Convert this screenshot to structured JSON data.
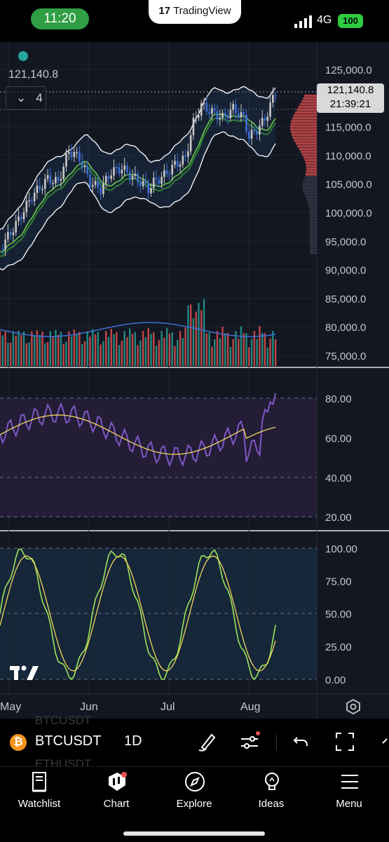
{
  "status_bar": {
    "time": "11:20",
    "app_pill": "TradingView",
    "network": "4G",
    "battery": "100"
  },
  "chart": {
    "last_price": "121,140.8",
    "countdown": "21:39:21",
    "overlay_price": "121,140.8",
    "collapsed_count": "4",
    "price_axis": [
      "125,000.0",
      "120,000.0",
      "115,000.0",
      "110,000.0",
      "105,000.0",
      "100,000.0",
      "95,000.0",
      "90,000.0",
      "85,000.0",
      "80,000.0",
      "75,000.0"
    ],
    "rsi_axis": [
      "80.00",
      "60.00",
      "40.00",
      "20.00"
    ],
    "stoch_axis": [
      "100.00",
      "75.00",
      "50.00",
      "25.00",
      "0.00"
    ],
    "months": [
      "May",
      "Jun",
      "Jul",
      "Aug"
    ],
    "colors": {
      "up": "#26a69a",
      "down": "#ef5350",
      "rsi": "#7e57c2",
      "signal": "#f0d75a",
      "stoch": "#9ce35a"
    }
  },
  "toolbar": {
    "symbol": "BTCUSDT",
    "interval": "1D",
    "ghost_symbol_above": "BTCUSDT",
    "ghost_symbol_below": "ETHUSDT",
    "icons": [
      "brush-icon",
      "indicators-icon",
      "undo-icon",
      "fullscreen-icon"
    ]
  },
  "nav": {
    "items": [
      {
        "label": "Watchlist",
        "icon": "watchlist-icon"
      },
      {
        "label": "Chart",
        "icon": "chart-icon"
      },
      {
        "label": "Explore",
        "icon": "compass-icon"
      },
      {
        "label": "Ideas",
        "icon": "lightbulb-icon"
      },
      {
        "label": "Menu",
        "icon": "menu-icon"
      }
    ]
  }
}
